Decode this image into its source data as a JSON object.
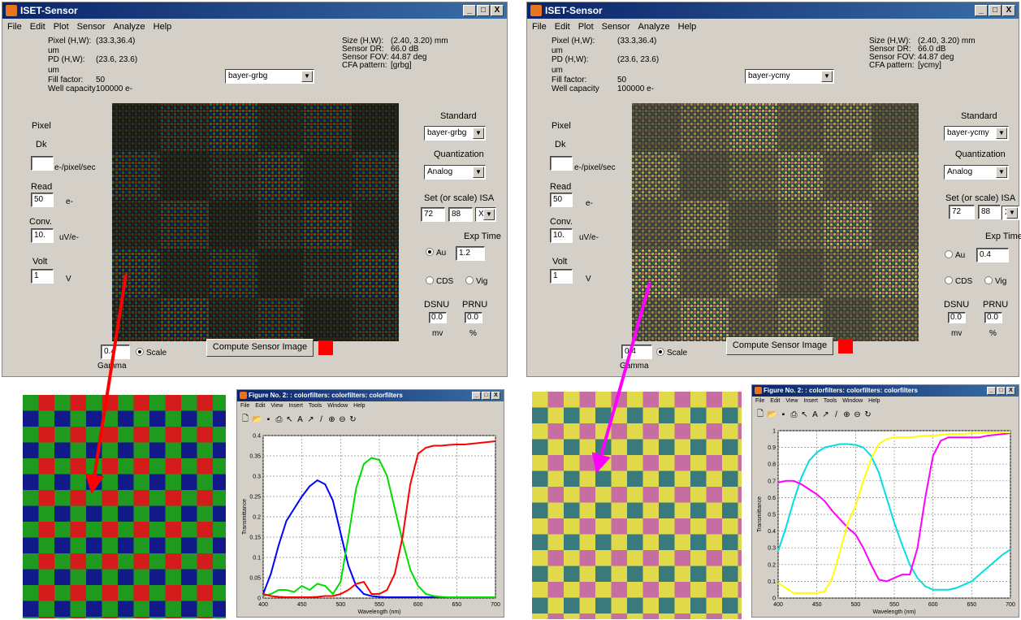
{
  "left_window": {
    "title": "ISET-Sensor",
    "window_buttons": [
      "_",
      "□",
      "X"
    ],
    "menu": [
      "File",
      "Edit",
      "Plot",
      "Sensor",
      "Analyze",
      "Help"
    ],
    "info_left": [
      {
        "label": "Pixel (H,W):",
        "value": "(33.3,36.4)"
      },
      {
        "label": "um",
        "value": ""
      },
      {
        "label": "PD (H,W):",
        "value": "(23.6, 23.6)"
      },
      {
        "label": "um",
        "value": ""
      },
      {
        "label": "Fill factor:",
        "value": "50"
      },
      {
        "label": "Well capacity",
        "value": "100000 e-"
      }
    ],
    "info_right": [
      {
        "label": "Size (H,W):",
        "value": "(2.40, 3.20) mm"
      },
      {
        "label": "Sensor DR:",
        "value": "66.0 dB"
      },
      {
        "label": "Sensor FOV:",
        "value": "44.87 deg"
      },
      {
        "label": "CFA pattern:",
        "value": "[grbg]"
      }
    ],
    "cfa_select": "bayer-grbg",
    "pixel_label": "Pixel",
    "dk_label": "Dk",
    "dk_value": "",
    "dk_unit": "e-/pixel/sec",
    "read_label": "Read",
    "read_value": "50",
    "read_unit": "e-",
    "conv_label": "Conv.",
    "conv_value": "10.",
    "conv_unit": "uV/e-",
    "volt_label": "Volt",
    "volt_value": "1",
    "volt_unit": "V",
    "standard_label": "Standard",
    "standard_value": "bayer-grbg",
    "quant_label": "Quantization",
    "quant_value": "Analog",
    "isa_label": "Set (or scale) ISA",
    "isa_1": "72",
    "isa_2": "88",
    "isa_select": "X",
    "exp_label": "Exp Time",
    "exp_auto_label": "Au",
    "exp_value": "1.2",
    "exp_auto_on": true,
    "cds_label": "CDS",
    "vig_label": "Vig",
    "dsnu_label": "DSNU",
    "prnu_label": "PRNU",
    "dsnu_value": "0.0",
    "prnu_value": "0.0",
    "dsnu_unit": "mv",
    "prnu_unit": "%",
    "gamma_value": "0.4",
    "gamma_label": "Gamma",
    "scale_label": "Scale",
    "compute_button": "Compute Sensor Image",
    "cfa_colors": [
      "#2a8a2a",
      "#c02020",
      "#1a1a90"
    ]
  },
  "right_window": {
    "title": "ISET-Sensor",
    "window_buttons": [
      "_",
      "□",
      "X"
    ],
    "menu": [
      "File",
      "Edit",
      "Plot",
      "Sensor",
      "Analyze",
      "Help"
    ],
    "info_left": [
      {
        "label": "Pixel (H,W):",
        "value": "(33.3,36.4)"
      },
      {
        "label": "um",
        "value": ""
      },
      {
        "label": "PD (H,W):",
        "value": "(23.6, 23.6)"
      },
      {
        "label": "um",
        "value": ""
      },
      {
        "label": "Fill factor:",
        "value": "50"
      },
      {
        "label": "Well capacity",
        "value": "100000 e-"
      }
    ],
    "info_right": [
      {
        "label": "Size (H,W):",
        "value": "(2.40, 3.20) mm"
      },
      {
        "label": "Sensor DR:",
        "value": "66.0 dB"
      },
      {
        "label": "Sensor FOV:",
        "value": "44.87 deg"
      },
      {
        "label": "CFA pattern:",
        "value": "[ycmy]"
      }
    ],
    "cfa_select": "bayer-ycmy",
    "pixel_label": "Pixel",
    "dk_label": "Dk",
    "dk_value": "",
    "dk_unit": "e-/pixel/sec",
    "read_label": "Read",
    "read_value": "50",
    "read_unit": "e-",
    "conv_label": "Conv.",
    "conv_value": "10.",
    "conv_unit": "uV/e-",
    "volt_label": "Volt",
    "volt_value": "1",
    "volt_unit": "V",
    "standard_label": "Standard",
    "standard_value": "bayer-ycmy",
    "quant_label": "Quantization",
    "quant_value": "Analog",
    "isa_label": "Set (or scale) ISA",
    "isa_1": "72",
    "isa_2": "88",
    "isa_select": "X",
    "exp_label": "Exp Time",
    "exp_auto_label": "Au",
    "exp_value": "0.4",
    "exp_auto_on": false,
    "cds_label": "CDS",
    "vig_label": "Vig",
    "dsnu_label": "DSNU",
    "prnu_label": "PRNU",
    "dsnu_value": "0.0",
    "prnu_value": "0.0",
    "dsnu_unit": "mv",
    "prnu_unit": "%",
    "gamma_value": "0.4",
    "gamma_label": "Gamma",
    "scale_label": "Scale",
    "compute_button": "Compute Sensor Image",
    "cfa_colors": [
      "#e6e04a",
      "#c56aa0",
      "#2f6b6e"
    ]
  },
  "figure_left": {
    "title": "Figure No. 2: : colorfilters: colorfilters: colorfilters",
    "menu": [
      "File",
      "Edit",
      "View",
      "Insert",
      "Tools",
      "Window",
      "Help"
    ],
    "toolbar_icons": [
      "new-icon",
      "open-icon",
      "save-icon",
      "print-icon",
      "pointer-icon",
      "text-icon",
      "arrow-icon",
      "line-icon",
      "zoom-in-icon",
      "zoom-out-icon",
      "rotate-icon"
    ]
  },
  "figure_right": {
    "title": "Figure No. 2: : colorfilters: colorfilters: colorfilters",
    "menu": [
      "File",
      "Edit",
      "View",
      "Insert",
      "Tools",
      "Window",
      "Help"
    ],
    "toolbar_icons": [
      "new-icon",
      "open-icon",
      "save-icon",
      "print-icon",
      "pointer-icon",
      "text-icon",
      "arrow-icon",
      "line-icon",
      "zoom-in-icon",
      "zoom-out-icon",
      "rotate-icon"
    ]
  },
  "chart_data": [
    {
      "type": "line",
      "xlabel": "Wavelength (nm)",
      "ylabel": "Transmittance",
      "xlim": [
        400,
        700
      ],
      "ylim": [
        0,
        0.4
      ],
      "xticks": [
        400,
        450,
        500,
        550,
        600,
        650,
        700
      ],
      "yticks": [
        0,
        0.05,
        0.1,
        0.15,
        0.2,
        0.25,
        0.3,
        0.35,
        0.4
      ],
      "grid": true,
      "series": [
        {
          "color": "#0000ff",
          "x": [
            400,
            410,
            420,
            430,
            440,
            450,
            460,
            470,
            480,
            490,
            500,
            510,
            520,
            530,
            540,
            550,
            560,
            570,
            580,
            590,
            600,
            610,
            620,
            630,
            640,
            650,
            660,
            670,
            680,
            690,
            700
          ],
          "values": [
            0.01,
            0.06,
            0.13,
            0.19,
            0.22,
            0.25,
            0.275,
            0.29,
            0.28,
            0.24,
            0.16,
            0.08,
            0.03,
            0.01,
            0.005,
            0.003,
            0.002,
            0.002,
            0.002,
            0.002,
            0.002,
            0.002,
            0.002,
            0.002,
            0.002,
            0.002,
            0.002,
            0.002,
            0.002,
            0.002,
            0.002
          ]
        },
        {
          "color": "#00dd00",
          "x": [
            400,
            410,
            420,
            430,
            440,
            450,
            460,
            470,
            480,
            490,
            500,
            510,
            520,
            530,
            540,
            550,
            560,
            570,
            580,
            590,
            600,
            610,
            620,
            630,
            640,
            650,
            660,
            670,
            680,
            690,
            700
          ],
          "values": [
            0.005,
            0.01,
            0.02,
            0.02,
            0.015,
            0.03,
            0.02,
            0.035,
            0.03,
            0.01,
            0.04,
            0.15,
            0.27,
            0.33,
            0.345,
            0.34,
            0.3,
            0.22,
            0.14,
            0.07,
            0.03,
            0.01,
            0.005,
            0.003,
            0.002,
            0.002,
            0.002,
            0.002,
            0.002,
            0.002,
            0.002
          ]
        },
        {
          "color": "#ff0000",
          "x": [
            400,
            410,
            420,
            430,
            440,
            450,
            460,
            470,
            480,
            490,
            500,
            510,
            520,
            530,
            540,
            550,
            560,
            570,
            580,
            590,
            600,
            610,
            620,
            630,
            640,
            650,
            660,
            670,
            680,
            690,
            700
          ],
          "values": [
            0.01,
            0.005,
            0.003,
            0.002,
            0.002,
            0.002,
            0.002,
            0.003,
            0.005,
            0.005,
            0.01,
            0.02,
            0.035,
            0.04,
            0.01,
            0.01,
            0.02,
            0.06,
            0.15,
            0.28,
            0.355,
            0.37,
            0.375,
            0.375,
            0.377,
            0.378,
            0.378,
            0.38,
            0.382,
            0.384,
            0.386
          ]
        }
      ]
    },
    {
      "type": "line",
      "xlabel": "Wavelength (nm)",
      "ylabel": "Transmittance",
      "xlim": [
        400,
        700
      ],
      "ylim": [
        0,
        1
      ],
      "xticks": [
        400,
        450,
        500,
        550,
        600,
        650,
        700
      ],
      "yticks": [
        0,
        0.1,
        0.2,
        0.3,
        0.4,
        0.5,
        0.6,
        0.7,
        0.8,
        0.9,
        1
      ],
      "grid": true,
      "series": [
        {
          "color": "#00e0e0",
          "x": [
            400,
            410,
            420,
            430,
            440,
            450,
            460,
            470,
            480,
            490,
            500,
            510,
            520,
            530,
            540,
            550,
            560,
            570,
            580,
            590,
            600,
            610,
            620,
            630,
            640,
            650,
            660,
            670,
            680,
            690,
            700
          ],
          "values": [
            0.28,
            0.42,
            0.58,
            0.72,
            0.82,
            0.87,
            0.9,
            0.91,
            0.92,
            0.92,
            0.915,
            0.9,
            0.85,
            0.75,
            0.6,
            0.45,
            0.32,
            0.2,
            0.12,
            0.07,
            0.05,
            0.05,
            0.05,
            0.06,
            0.08,
            0.1,
            0.14,
            0.18,
            0.22,
            0.26,
            0.29
          ]
        },
        {
          "color": "#ff00ff",
          "x": [
            400,
            410,
            420,
            430,
            440,
            450,
            460,
            470,
            480,
            490,
            500,
            510,
            520,
            530,
            540,
            550,
            560,
            570,
            580,
            590,
            600,
            610,
            620,
            630,
            640,
            650,
            660,
            670,
            680,
            690,
            700
          ],
          "values": [
            0.69,
            0.7,
            0.7,
            0.68,
            0.65,
            0.62,
            0.58,
            0.52,
            0.47,
            0.42,
            0.38,
            0.3,
            0.2,
            0.11,
            0.1,
            0.12,
            0.14,
            0.14,
            0.3,
            0.6,
            0.85,
            0.94,
            0.96,
            0.96,
            0.96,
            0.96,
            0.96,
            0.97,
            0.975,
            0.98,
            0.985
          ]
        },
        {
          "color": "#ffff00",
          "x": [
            400,
            410,
            420,
            430,
            440,
            450,
            460,
            470,
            480,
            490,
            500,
            510,
            520,
            530,
            540,
            550,
            560,
            570,
            580,
            590,
            600,
            610,
            620,
            630,
            640,
            650,
            660,
            670,
            680,
            690,
            700
          ],
          "values": [
            0.09,
            0.06,
            0.03,
            0.03,
            0.03,
            0.03,
            0.04,
            0.12,
            0.28,
            0.45,
            0.55,
            0.7,
            0.83,
            0.92,
            0.95,
            0.96,
            0.96,
            0.96,
            0.965,
            0.97,
            0.97,
            0.975,
            0.98,
            0.98,
            0.98,
            0.985,
            0.985,
            0.99,
            0.99,
            0.99,
            0.99
          ]
        }
      ]
    }
  ]
}
